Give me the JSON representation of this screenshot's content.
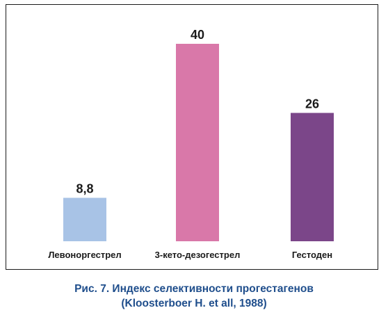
{
  "chart_data": {
    "type": "bar",
    "categories": [
      "Левоноргестрел",
      "3-кето-дезогестрел",
      "Гестоден"
    ],
    "values": [
      8.8,
      40,
      26
    ],
    "value_labels": [
      "8,8",
      "40",
      "26"
    ],
    "colors": [
      "#a8c3e6",
      "#d978a9",
      "#7b4689"
    ],
    "ylim": [
      0,
      40
    ],
    "grid": false,
    "legend": "none"
  },
  "caption": {
    "line1": "Рис. 7. Индекс селективности прогестагенов",
    "line2": "(Kloosterboer H. et all, 1988)"
  }
}
